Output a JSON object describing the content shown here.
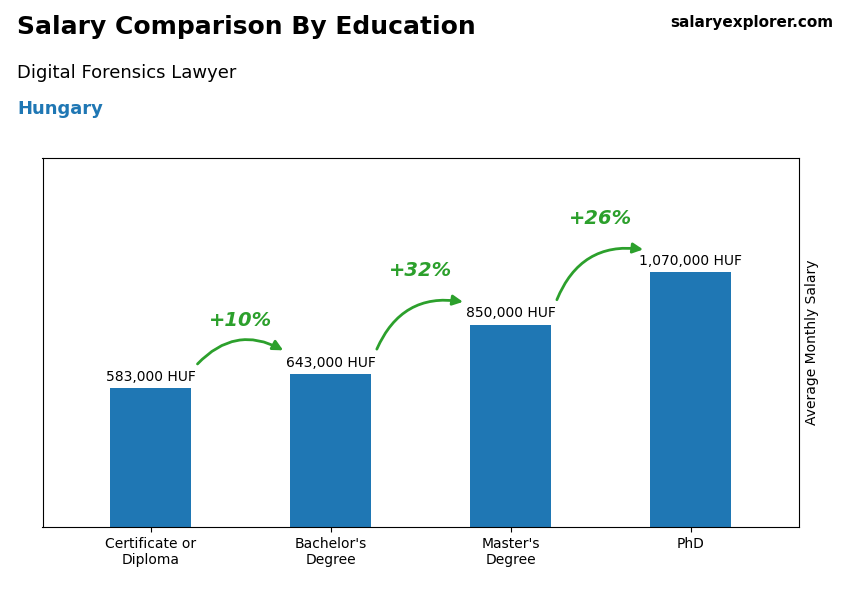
{
  "chart_data": {
    "type": "bar",
    "title": "Salary Comparison By Education",
    "subtitle": "Digital Forensics Lawyer",
    "ylabel": "Average Monthly Salary",
    "categories": [
      "Certificate or\nDiploma",
      "Bachelor's\nDegree",
      "Master's\nDegree",
      "PhD"
    ],
    "values": [
      583000,
      643000,
      850000,
      1070000
    ],
    "value_labels": [
      "583,000 HUF",
      "643,000 HUF",
      "850,000 HUF",
      "1,070,000 HUF"
    ],
    "data_labels": true,
    "ylim": [
      0,
      1550000
    ],
    "tick_labels": "x",
    "annotations": [
      {
        "text": "Hungary"
      },
      {
        "text": "salaryexplorer.com"
      },
      {
        "text": "+10%",
        "from": "Certificate or\nDiploma",
        "to": "Bachelor's\nDegree"
      },
      {
        "text": "+32%",
        "from": "Bachelor's\nDegree",
        "to": "Master's\nDegree"
      },
      {
        "text": "+26%",
        "from": "Master's\nDegree",
        "to": "PhD"
      }
    ]
  }
}
